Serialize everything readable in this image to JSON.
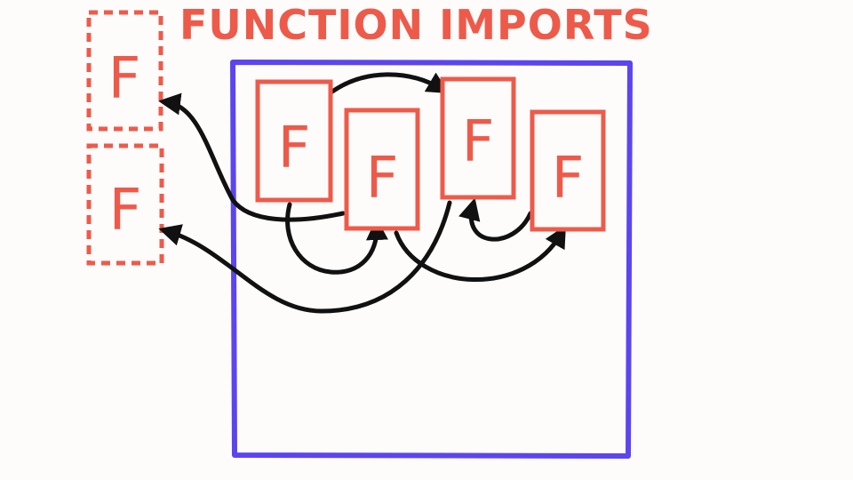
{
  "diagram": {
    "title": "FUNCTION IMPORTS",
    "function_label": "F",
    "colors": {
      "function": "#ee5a4a",
      "module": "#5b45f0",
      "arrow": "#111111",
      "background": "#fdfcfb"
    }
  }
}
